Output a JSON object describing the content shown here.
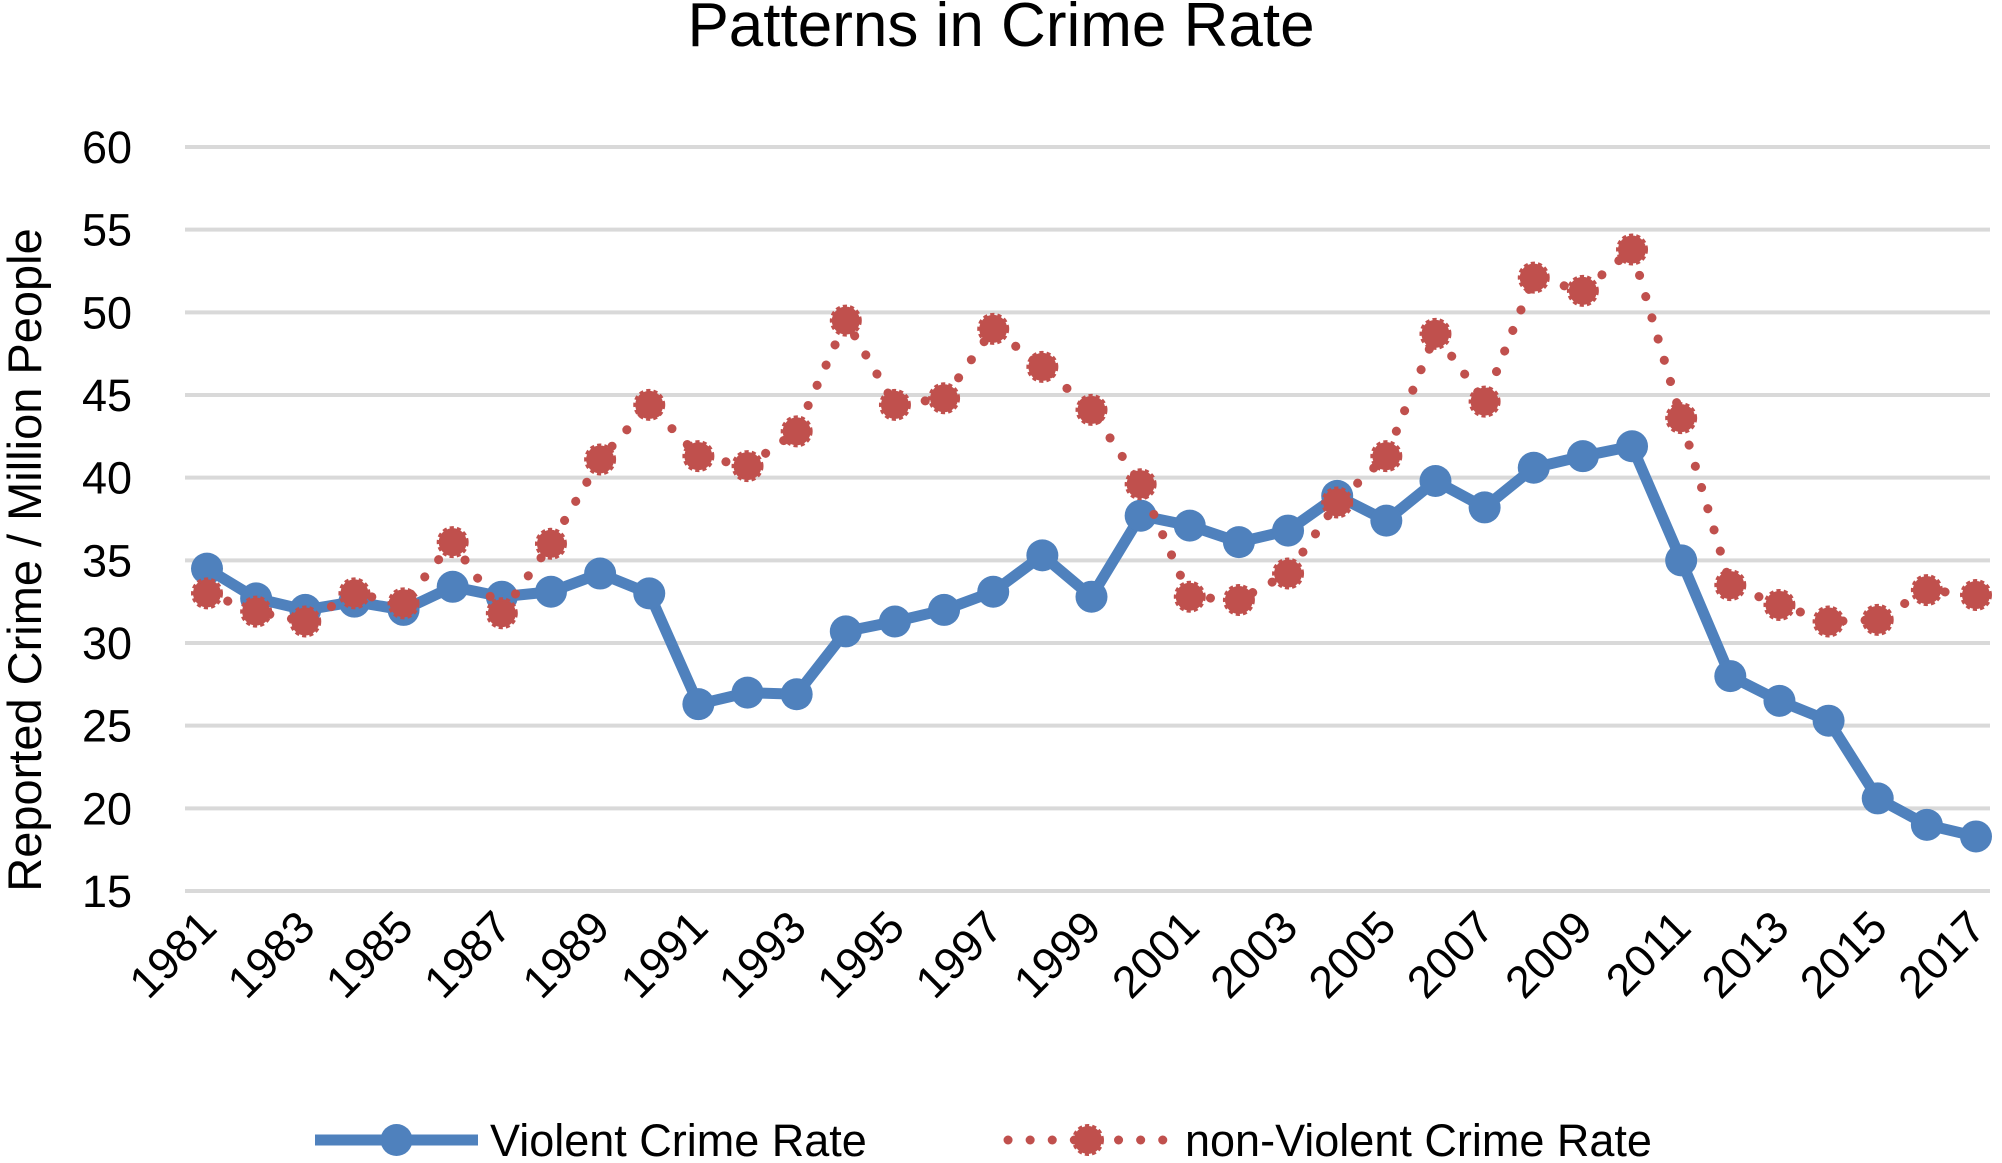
{
  "chart_data": {
    "type": "line",
    "title": "Patterns in Crime Rate",
    "xlabel": "",
    "ylabel": "Reported Crime / Million People",
    "ylim": [
      15,
      60
    ],
    "yticks": [
      15,
      20,
      25,
      30,
      35,
      40,
      45,
      50,
      55,
      60
    ],
    "x": [
      1981,
      1982,
      1983,
      1984,
      1985,
      1986,
      1987,
      1988,
      1989,
      1990,
      1991,
      1992,
      1993,
      1994,
      1995,
      1996,
      1997,
      1998,
      1999,
      2000,
      2001,
      2002,
      2003,
      2004,
      2005,
      2006,
      2007,
      2008,
      2009,
      2010,
      2011,
      2012,
      2013,
      2014,
      2015,
      2016,
      2017
    ],
    "xtick_labels": [
      "1981",
      "1983",
      "1985",
      "1987",
      "1989",
      "1991",
      "1993",
      "1995",
      "1997",
      "1999",
      "2001",
      "2003",
      "2005",
      "2007",
      "2009",
      "2011",
      "2013",
      "2015",
      "2017"
    ],
    "grid": true,
    "legend_position": "bottom",
    "series": [
      {
        "name": "Violent Crime Rate",
        "color": "#4f81bd",
        "line_style": "solid",
        "marker": "circle",
        "values": [
          34.5,
          32.7,
          32.0,
          32.5,
          32.0,
          33.4,
          32.8,
          33.1,
          34.2,
          33.0,
          26.3,
          27.0,
          26.9,
          30.7,
          31.3,
          32.0,
          33.1,
          35.3,
          32.8,
          37.7,
          37.1,
          36.1,
          36.8,
          38.9,
          37.4,
          39.8,
          38.2,
          40.6,
          41.3,
          41.9,
          35.0,
          28.0,
          26.5,
          25.3,
          20.6,
          19.0,
          18.3
        ]
      },
      {
        "name": "non-Violent Crime Rate",
        "color": "#c0504d",
        "line_style": "dotted",
        "marker": "circle",
        "values": [
          33.0,
          31.9,
          31.3,
          33.0,
          32.4,
          36.1,
          31.8,
          36.0,
          41.1,
          44.4,
          41.3,
          40.7,
          42.8,
          49.5,
          44.4,
          44.8,
          49.0,
          46.7,
          44.1,
          39.6,
          32.8,
          32.6,
          34.2,
          38.5,
          41.3,
          48.7,
          44.6,
          52.1,
          51.3,
          53.8,
          43.6,
          33.5,
          32.3,
          31.3,
          31.4,
          33.2,
          32.9
        ]
      }
    ]
  }
}
